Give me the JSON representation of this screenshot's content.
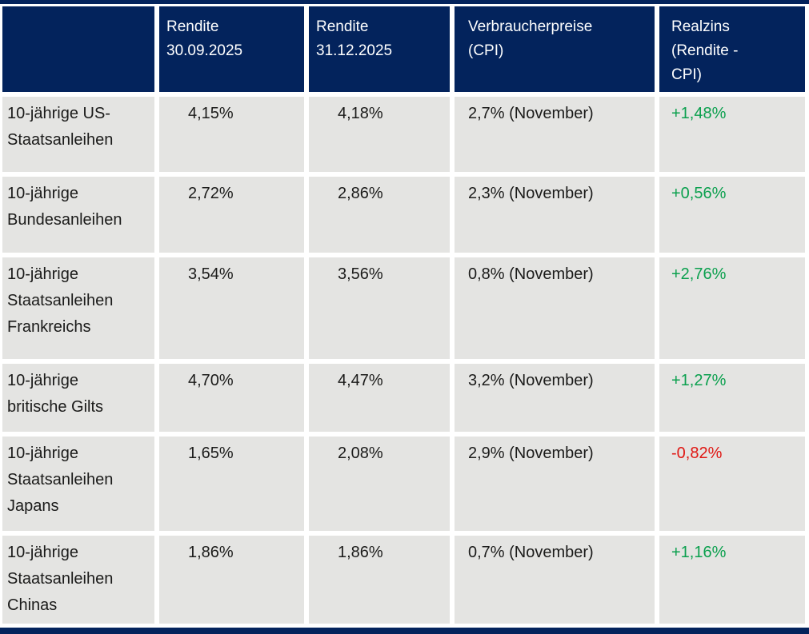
{
  "table": {
    "header": [
      "",
      "Rendite\n30.09.2025",
      "Rendite\n31.12.2025",
      "Verbraucherpreise\n(CPI)",
      "Realzins\n(Rendite -\nCPI)"
    ],
    "rows": [
      {
        "label": "10-jährige US-\nStaatsanleihen",
        "rendite_sep": "4,15%",
        "rendite_dec": "4,18%",
        "cpi": "2,7% (November)",
        "realzins": "+1,48%"
      },
      {
        "label": "10-jährige\nBundesanleihen",
        "rendite_sep": "2,72%",
        "rendite_dec": "2,86%",
        "cpi": "2,3% (November)",
        "realzins": "+0,56%"
      },
      {
        "label": "10-jährige\nStaatsanleihen\nFrankreichs",
        "rendite_sep": "3,54%",
        "rendite_dec": "3,56%",
        "cpi": "0,8% (November)",
        "realzins": "+2,76%"
      },
      {
        "label": "10-jährige\nbritische Gilts",
        "rendite_sep": "4,70%",
        "rendite_dec": "4,47%",
        "cpi": "3,2% (November)",
        "realzins": "+1,27%"
      },
      {
        "label": "10-jährige\nStaatsanleihen\nJapans",
        "rendite_sep": "1,65%",
        "rendite_dec": "2,08%",
        "cpi": "2,9% (November)",
        "realzins": "-0,82%"
      },
      {
        "label": "10-jährige\nStaatsanleihen\nChinas",
        "rendite_sep": "1,86%",
        "rendite_dec": "1,86%",
        "cpi": "0,7% (November)",
        "realzins": "+1,16%"
      }
    ]
  },
  "chart_data": {
    "type": "table",
    "columns": [
      "",
      "Rendite 30.09.2025",
      "Rendite 31.12.2025",
      "Verbraucherpreise (CPI)",
      "Realzins (Rendite - CPI)"
    ],
    "rows": [
      [
        "10-jährige US-Staatsanleihen",
        "4,15%",
        "4,18%",
        "2,7% (November)",
        "+1,48%"
      ],
      [
        "10-jährige Bundesanleihen",
        "2,72%",
        "2,86%",
        "2,3% (November)",
        "+0,56%"
      ],
      [
        "10-jährige Staatsanleihen Frankreichs",
        "3,54%",
        "3,56%",
        "0,8% (November)",
        "+2,76%"
      ],
      [
        "10-jährige britische Gilts",
        "4,70%",
        "4,47%",
        "3,2% (November)",
        "+1,27%"
      ],
      [
        "10-jährige Staatsanleihen Japans",
        "1,65%",
        "2,08%",
        "2,9% (November)",
        "-0,82%"
      ],
      [
        "10-jährige Staatsanleihen Chinas",
        "1,86%",
        "1,86%",
        "0,7% (November)",
        "+1,16%"
      ]
    ],
    "value_units": "percent",
    "realzins_positive_rows": [
      0,
      1,
      2,
      3,
      5
    ],
    "realzins_negative_rows": [
      4
    ]
  },
  "colors": {
    "header_bg": "#03235c",
    "cell_bg": "#e4e4e2",
    "positive": "#0ba04e",
    "negative": "#e01713",
    "text": "#1b1b1a",
    "header_text": "#ffffff"
  }
}
